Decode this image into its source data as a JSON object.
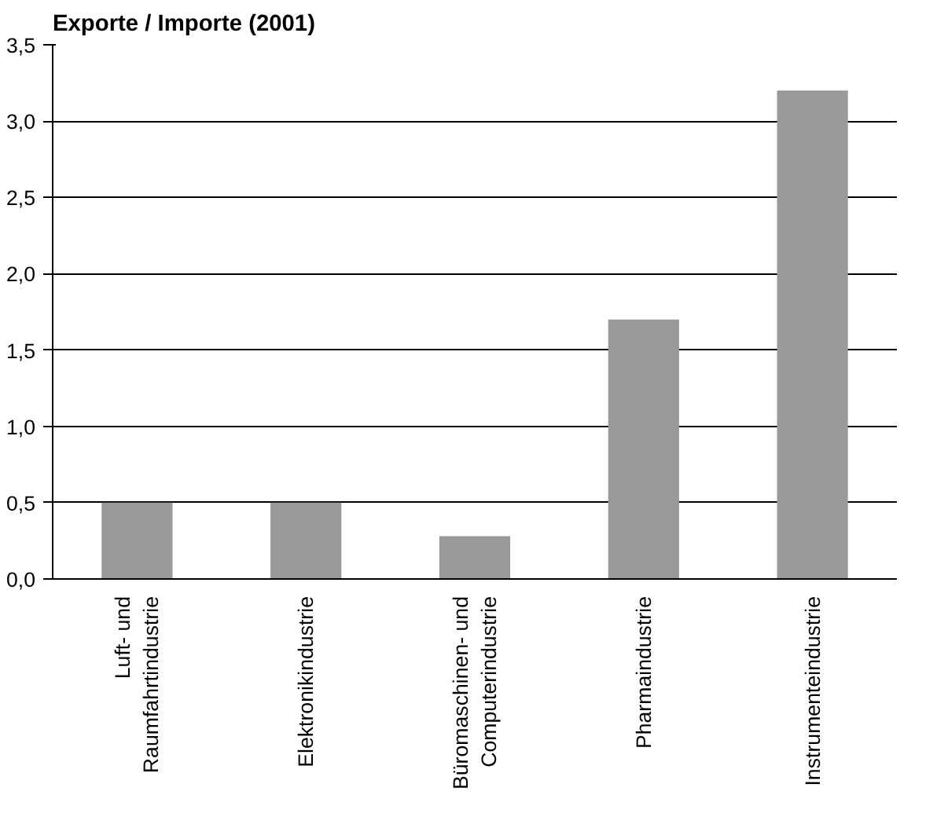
{
  "chart_data": {
    "type": "bar",
    "title": "Exporte / Importe (2001)",
    "categories": [
      "Luft- und Raumfahrtindustrie",
      "Elektronikindustrie",
      "Büromaschinen- und Computerindustrie",
      "Pharmaindustrie",
      "Instrumenteindustrie"
    ],
    "values": [
      0.5,
      0.5,
      0.28,
      1.7,
      3.2
    ],
    "color": "#999999",
    "ylim": [
      0,
      3.5
    ],
    "yticks": [
      {
        "value": 0,
        "label": "0,0"
      },
      {
        "value": 0.5,
        "label": "0,5"
      },
      {
        "value": 1,
        "label": "1,0"
      },
      {
        "value": 1.5,
        "label": "1,5"
      },
      {
        "value": 2,
        "label": "2,0"
      },
      {
        "value": 2.5,
        "label": "2,5"
      },
      {
        "value": 3,
        "label": "3,0"
      },
      {
        "value": 3.5,
        "label": "3,5"
      }
    ],
    "grid": "y"
  }
}
